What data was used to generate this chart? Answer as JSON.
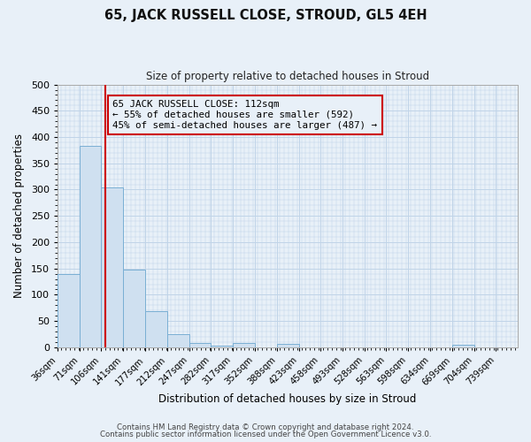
{
  "title": "65, JACK RUSSELL CLOSE, STROUD, GL5 4EH",
  "subtitle": "Size of property relative to detached houses in Stroud",
  "xlabel": "Distribution of detached houses by size in Stroud",
  "ylabel": "Number of detached properties",
  "bar_color": "#cfe0f0",
  "bar_edge_color": "#7aafd4",
  "grid_color": "#c0d4e8",
  "background_color": "#e8f0f8",
  "bins": [
    "36sqm",
    "71sqm",
    "106sqm",
    "141sqm",
    "177sqm",
    "212sqm",
    "247sqm",
    "282sqm",
    "317sqm",
    "352sqm",
    "388sqm",
    "423sqm",
    "458sqm",
    "493sqm",
    "528sqm",
    "563sqm",
    "598sqm",
    "634sqm",
    "669sqm",
    "704sqm",
    "739sqm"
  ],
  "bin_left_edges": [
    36,
    71,
    106,
    141,
    177,
    212,
    247,
    282,
    317,
    352,
    388,
    423,
    458,
    493,
    528,
    563,
    598,
    634,
    669,
    704,
    739
  ],
  "bin_width": 35,
  "bar_heights": [
    140,
    383,
    305,
    148,
    69,
    25,
    9,
    4,
    8,
    0,
    6,
    0,
    0,
    0,
    0,
    0,
    0,
    0,
    5,
    0,
    0
  ],
  "property_line_x": 112,
  "property_line_color": "#cc0000",
  "annotation_line1": "65 JACK RUSSELL CLOSE: 112sqm",
  "annotation_line2": "← 55% of detached houses are smaller (592)",
  "annotation_line3": "45% of semi-detached houses are larger (487) →",
  "annotation_box_color": "#cc0000",
  "ylim": [
    0,
    500
  ],
  "yticks": [
    0,
    50,
    100,
    150,
    200,
    250,
    300,
    350,
    400,
    450,
    500
  ],
  "footer_line1": "Contains HM Land Registry data © Crown copyright and database right 2024.",
  "footer_line2": "Contains public sector information licensed under the Open Government Licence v3.0."
}
